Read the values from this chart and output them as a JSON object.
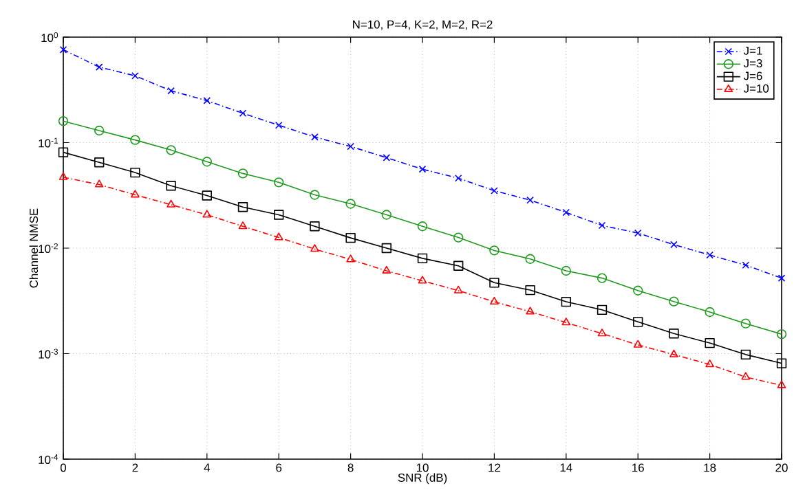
{
  "chart_data": {
    "type": "line",
    "title": "N=10, P=4, K=2, M=2, R=2",
    "xlabel": "SNR (dB)",
    "ylabel": "Channel NMSE",
    "x": [
      0,
      1,
      2,
      3,
      4,
      5,
      6,
      7,
      8,
      9,
      10,
      11,
      12,
      13,
      14,
      15,
      16,
      17,
      18,
      19,
      20
    ],
    "series": [
      {
        "name": "J=1",
        "color": "#0000ff",
        "marker": "cross",
        "line_style": "dashdot",
        "values": [
          0.76,
          0.52,
          0.43,
          0.31,
          0.25,
          0.19,
          0.146,
          0.113,
          0.092,
          0.072,
          0.056,
          0.046,
          0.035,
          0.0285,
          0.0218,
          0.0164,
          0.0139,
          0.0108,
          0.0086,
          0.0069,
          0.0052
        ]
      },
      {
        "name": "J=3",
        "color": "#1f9a1f",
        "marker": "circle",
        "line_style": "solid",
        "values": [
          0.16,
          0.13,
          0.106,
          0.085,
          0.066,
          0.051,
          0.042,
          0.032,
          0.0263,
          0.0207,
          0.0161,
          0.0126,
          0.0095,
          0.0079,
          0.0061,
          0.0052,
          0.00396,
          0.00312,
          0.00248,
          0.00193,
          0.00153
        ]
      },
      {
        "name": "J=6",
        "color": "#000000",
        "marker": "square",
        "line_style": "solid",
        "values": [
          0.081,
          0.065,
          0.052,
          0.039,
          0.0315,
          0.0245,
          0.0207,
          0.0161,
          0.0125,
          0.01,
          0.008,
          0.0068,
          0.0047,
          0.004,
          0.0031,
          0.0026,
          0.002,
          0.00155,
          0.00126,
          0.00098,
          0.00081
        ]
      },
      {
        "name": "J=10",
        "color": "#ff0000",
        "marker": "triangle",
        "line_style": "dashdot",
        "values": [
          0.047,
          0.04,
          0.032,
          0.0258,
          0.0207,
          0.0161,
          0.0126,
          0.0098,
          0.0078,
          0.0061,
          0.0049,
          0.00396,
          0.0031,
          0.0025,
          0.00197,
          0.00155,
          0.00121,
          0.00098,
          0.00079,
          0.0006,
          0.0005
        ]
      }
    ],
    "xlim": [
      0,
      20
    ],
    "xticks": [
      0,
      2,
      4,
      6,
      8,
      10,
      12,
      14,
      16,
      18,
      20
    ],
    "ylim": [
      0.0001,
      1
    ],
    "log": "y",
    "yticks": [
      {
        "value": 0.0001,
        "label": "10$^{-4}$"
      },
      {
        "value": 0.001,
        "label": "10$^{-3}$"
      },
      {
        "value": 0.01,
        "label": "10$^{-2}$"
      },
      {
        "value": 0.1,
        "label": "10$^{-1}$"
      },
      {
        "value": 1,
        "label": "10$^{0}$"
      }
    ],
    "grid": true,
    "legend": "top right"
  }
}
